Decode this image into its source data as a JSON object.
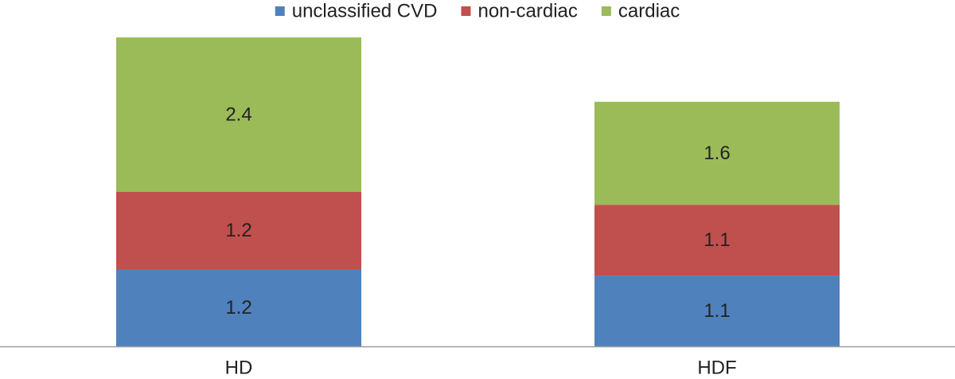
{
  "chart_data": {
    "type": "bar",
    "stacked": true,
    "categories": [
      "HD",
      "HDF"
    ],
    "series": [
      {
        "name": "unclassified CVD",
        "values": [
          1.2,
          1.1
        ],
        "color": "#4f81bd"
      },
      {
        "name": "non-cardiac",
        "values": [
          1.2,
          1.1
        ],
        "color": "#c0504d"
      },
      {
        "name": "cardiac",
        "values": [
          2.4,
          1.6
        ],
        "color": "#9bbb59"
      }
    ],
    "data_labels": [
      [
        "1.2",
        "1.1"
      ],
      [
        "1.2",
        "1.1"
      ],
      [
        "2.4",
        "1.6"
      ]
    ],
    "title": "",
    "xlabel": "",
    "ylabel": "",
    "ylim": [
      0,
      4.8
    ],
    "grid": false,
    "legend_position": "top-center",
    "axis_color": "#9c9c9c"
  }
}
